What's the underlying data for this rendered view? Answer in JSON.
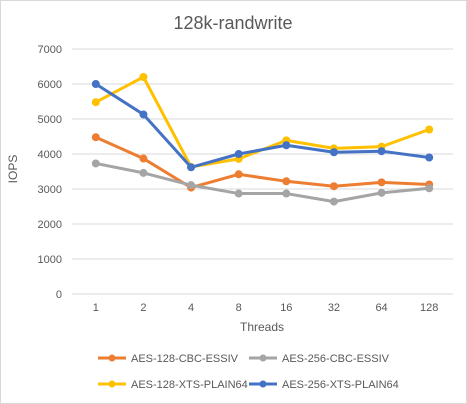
{
  "chart_data": {
    "type": "line",
    "title": "128k-randwrite",
    "xlabel": "Threads",
    "ylabel": "IOPS",
    "categories": [
      "1",
      "2",
      "4",
      "8",
      "16",
      "32",
      "64",
      "128"
    ],
    "ylim": [
      0,
      7000
    ],
    "yticks": [
      "0",
      "1000",
      "2000",
      "3000",
      "4000",
      "5000",
      "6000",
      "7000"
    ],
    "grid": true,
    "legend_position": "bottom",
    "series": [
      {
        "name": "AES-128-CBC-ESSIV",
        "color": "#ED7D31",
        "values": [
          4480,
          3870,
          3040,
          3420,
          3220,
          3080,
          3190,
          3130
        ]
      },
      {
        "name": "AES-256-CBC-ESSIV",
        "color": "#A5A5A5",
        "values": [
          3730,
          3460,
          3110,
          2870,
          2870,
          2640,
          2890,
          3020
        ]
      },
      {
        "name": "AES-128-XTS-PLAIN64",
        "color": "#FFC000",
        "values": [
          5480,
          6200,
          3630,
          3860,
          4390,
          4160,
          4210,
          4700
        ]
      },
      {
        "name": "AES-256-XTS-PLAIN64",
        "color": "#4472C4",
        "values": [
          6000,
          5130,
          3620,
          4000,
          4250,
          4050,
          4080,
          3900
        ]
      }
    ]
  }
}
